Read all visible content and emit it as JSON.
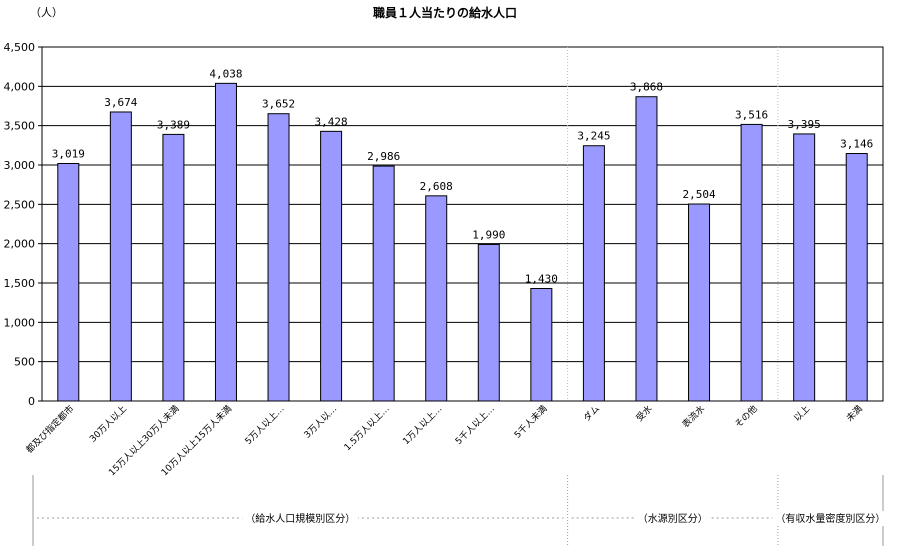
{
  "chart_data": {
    "type": "bar",
    "title": "職員１人当たりの給水人口",
    "unit_label": "（人）",
    "ylim": [
      0,
      4500
    ],
    "yticks": [
      "0",
      "500",
      "1,000",
      "1,500",
      "2,000",
      "2,500",
      "3,000",
      "3,500",
      "4,000",
      "4,500"
    ],
    "grid": true,
    "bar_color": "#9999ff",
    "categories": [
      "都及び指定都市",
      "30万人以上",
      "15万人以上30万人未満",
      "10万人以上15万人未満",
      "5万人以上…",
      "3万人以…",
      "1.5万人以上…",
      "1万人以上…",
      "5千人以上…",
      "5千人未満",
      "ダム",
      "受水",
      "表流水",
      "その他",
      "以上",
      "未満"
    ],
    "values": [
      3019,
      3674,
      3389,
      4038,
      3652,
      3428,
      2986,
      2608,
      1990,
      1430,
      3245,
      3868,
      2504,
      3516,
      3395,
      3146
    ],
    "value_labels": [
      "3,019",
      "3,674",
      "3,389",
      "4,038",
      "3,652",
      "3,428",
      "2,986",
      "2,608",
      "1,990",
      "1,430",
      "3,245",
      "3,868",
      "2,504",
      "3,516",
      "3,395",
      "3,146"
    ],
    "groups": [
      {
        "label": "（給水人口規模別区分）",
        "start": 0,
        "end": 9
      },
      {
        "label": "（水源別区分）",
        "start": 10,
        "end": 13
      },
      {
        "label": "（有収水量密度別区分）",
        "start": 14,
        "end": 15
      }
    ]
  }
}
